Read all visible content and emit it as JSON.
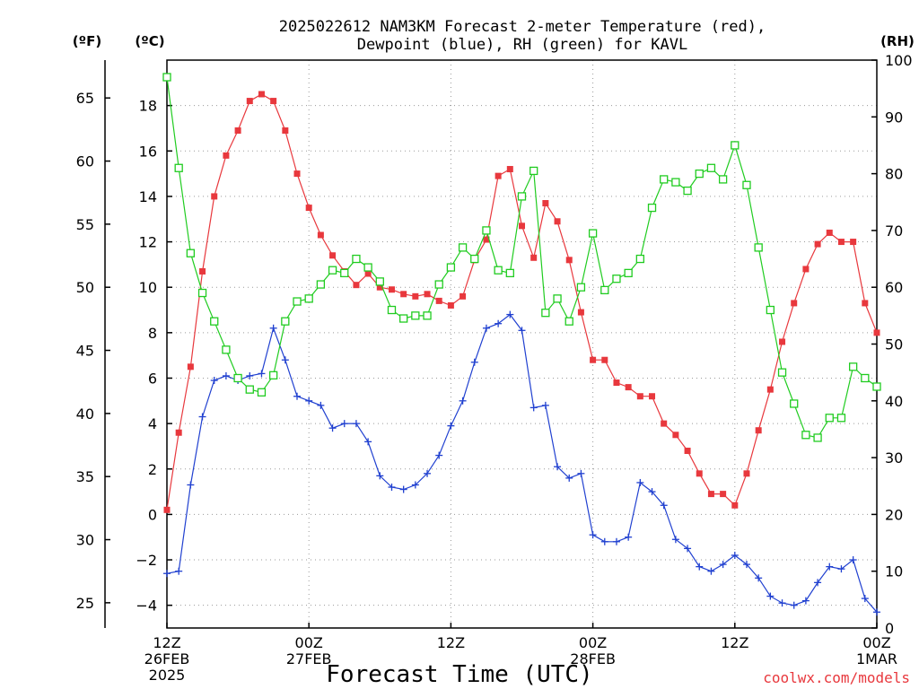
{
  "title": {
    "line1": "2025022612 NAM3KM Forecast 2-meter Temperature (red),",
    "line2": "Dewpoint (blue), RH (green) for KAVL"
  },
  "units": {
    "fahrenheit": "(ºF)",
    "celsius": "(ºC)",
    "rh": "(RH)"
  },
  "x_axis_title": "Forecast Time (UTC)",
  "credit": "coolwx.com/models",
  "chart_data": {
    "type": "line",
    "title": "2025022612 NAM3KM Forecast 2-meter Temperature (red), Dewpoint (blue), RH (green) for KAVL",
    "xlabel": "Forecast Time (UTC)",
    "ylabel_left_f": "(ºF)",
    "ylabel_left_c": "(ºC)",
    "ylabel_right": "(RH)",
    "x_start": "2025-02-26T12:00Z",
    "x_end": "2025-03-01T00:00Z",
    "x_ticks": [
      {
        "hour": 0,
        "lines": [
          "12Z",
          "26FEB",
          "2025"
        ]
      },
      {
        "hour": 12,
        "lines": [
          "00Z",
          "27FEB"
        ]
      },
      {
        "hour": 24,
        "lines": [
          "12Z"
        ]
      },
      {
        "hour": 36,
        "lines": [
          "00Z",
          "28FEB"
        ]
      },
      {
        "hour": 48,
        "lines": [
          "12Z"
        ]
      },
      {
        "hour": 60,
        "lines": [
          "00Z",
          "1MAR"
        ]
      }
    ],
    "ylim_c": [
      -5,
      20
    ],
    "yticks_c": [
      "−4",
      "−2",
      "0",
      "2",
      "4",
      "6",
      "8",
      "10",
      "12",
      "14",
      "16",
      "18"
    ],
    "yticks_f": [
      "25",
      "30",
      "35",
      "40",
      "45",
      "50",
      "55",
      "60",
      "65"
    ],
    "ylim_rh": [
      0,
      100
    ],
    "yticks_rh": [
      "0",
      "10",
      "20",
      "30",
      "40",
      "50",
      "60",
      "70",
      "80",
      "90",
      "100"
    ],
    "grid": true,
    "colors": {
      "temperature": "#e8383d",
      "dewpoint": "#2040d0",
      "rh": "#20cc20",
      "credit": "#e8383d"
    },
    "series": [
      {
        "name": "Temperature",
        "unit": "C",
        "marker": "filled-square",
        "x": [
          0,
          1,
          2,
          3,
          4,
          5,
          6,
          7,
          8,
          9,
          10,
          11,
          12,
          13,
          14,
          15,
          16,
          17,
          18,
          19,
          20,
          21,
          22,
          23,
          24,
          25,
          26,
          27,
          28,
          29,
          30,
          31,
          32,
          33,
          34,
          35,
          36,
          37,
          38,
          39,
          40,
          41,
          42,
          43,
          44,
          45,
          46,
          47,
          48,
          49,
          50,
          51,
          52,
          53,
          54,
          55,
          56,
          57,
          58,
          59,
          60
        ],
        "values": [
          0.2,
          3.6,
          6.5,
          10.7,
          14.0,
          15.8,
          16.9,
          18.2,
          18.5,
          18.2,
          16.9,
          15.0,
          13.5,
          12.3,
          11.4,
          10.7,
          10.1,
          10.6,
          10.0,
          9.9,
          9.7,
          9.6,
          9.7,
          9.4,
          9.2,
          9.6,
          11.2,
          12.1,
          14.9,
          15.2,
          12.7,
          11.3,
          13.7,
          12.9,
          11.2,
          8.9,
          6.8,
          6.8,
          5.8,
          5.6,
          5.2,
          5.2,
          4.0,
          3.5,
          2.8,
          1.8,
          0.9,
          0.9,
          0.4,
          1.8,
          3.7,
          5.5,
          7.6,
          9.3,
          10.8,
          11.9,
          12.4,
          12.0,
          12.0,
          9.3,
          8.0
        ]
      },
      {
        "name": "Dewpoint",
        "unit": "C",
        "marker": "plus",
        "x": [
          0,
          1,
          2,
          3,
          4,
          5,
          6,
          7,
          8,
          9,
          10,
          11,
          12,
          13,
          14,
          15,
          16,
          17,
          18,
          19,
          20,
          21,
          22,
          23,
          24,
          25,
          26,
          27,
          28,
          29,
          30,
          31,
          32,
          33,
          34,
          35,
          36,
          37,
          38,
          39,
          40,
          41,
          42,
          43,
          44,
          45,
          46,
          47,
          48,
          49,
          50,
          51,
          52,
          53,
          54,
          55,
          56,
          57,
          58,
          59,
          60
        ],
        "values": [
          -2.6,
          -2.5,
          1.3,
          4.3,
          5.9,
          6.1,
          5.9,
          6.1,
          6.2,
          8.2,
          6.8,
          5.2,
          5.0,
          4.8,
          3.8,
          4.0,
          4.0,
          3.2,
          1.7,
          1.2,
          1.1,
          1.3,
          1.8,
          2.6,
          3.9,
          5.0,
          6.7,
          8.2,
          8.4,
          8.8,
          8.1,
          4.7,
          4.8,
          2.1,
          1.6,
          1.8,
          -0.9,
          -1.2,
          -1.2,
          -1.0,
          1.4,
          1.0,
          0.4,
          -1.1,
          -1.5,
          -2.3,
          -2.5,
          -2.2,
          -1.8,
          -2.2,
          -2.8,
          -3.6,
          -3.9,
          -4.0,
          -3.8,
          -3.0,
          -2.3,
          -2.4,
          -2.0,
          -3.7,
          -4.3
        ]
      },
      {
        "name": "RH",
        "unit": "%",
        "marker": "open-square",
        "x": [
          0,
          1,
          2,
          3,
          4,
          5,
          6,
          7,
          8,
          9,
          10,
          11,
          12,
          13,
          14,
          15,
          16,
          17,
          18,
          19,
          20,
          21,
          22,
          23,
          24,
          25,
          26,
          27,
          28,
          29,
          30,
          31,
          32,
          33,
          34,
          35,
          36,
          37,
          38,
          39,
          40,
          41,
          42,
          43,
          44,
          45,
          46,
          47,
          48,
          49,
          50,
          51,
          52,
          53,
          54,
          55,
          56,
          57,
          58,
          59,
          60
        ],
        "values": [
          97,
          81,
          66,
          59,
          54,
          49,
          44,
          42,
          41.5,
          44.5,
          54,
          57.5,
          58,
          60.5,
          63,
          62.5,
          65,
          63.5,
          61,
          56,
          54.5,
          55,
          55,
          60.5,
          63.5,
          67,
          65,
          70,
          63,
          62.5,
          76,
          80.5,
          55.5,
          58,
          54,
          60,
          69.5,
          59.5,
          61.5,
          62.5,
          65,
          74,
          79,
          78.5,
          77,
          80,
          81,
          79,
          85,
          78,
          67,
          56,
          45,
          39.5,
          34,
          33.5,
          37,
          37,
          46,
          44,
          42.5
        ]
      }
    ]
  }
}
